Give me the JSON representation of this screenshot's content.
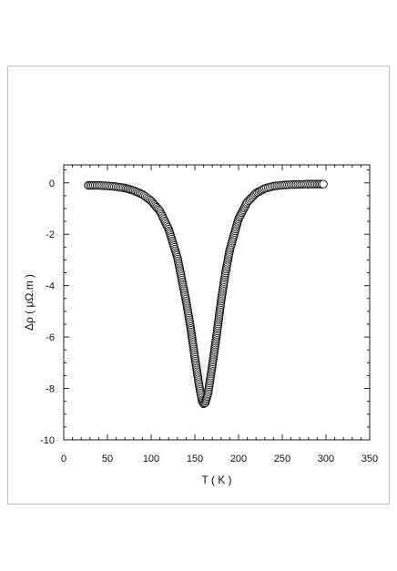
{
  "chart_data": {
    "type": "scatter",
    "title": "",
    "xlabel": "T ( K )",
    "ylabel": "Δρ ( μΩ.m )",
    "xlim": [
      0,
      350
    ],
    "ylim": [
      -10,
      0.7
    ],
    "xticks": [
      0,
      50,
      100,
      150,
      200,
      250,
      300,
      350
    ],
    "yticks": [
      0,
      -2,
      -4,
      -6,
      -8,
      -10
    ],
    "grid": false,
    "marker": "open-circle",
    "series": [
      {
        "values": {
          "x": [
            28,
            40,
            50,
            60,
            70,
            80,
            90,
            100,
            110,
            120,
            130,
            140,
            145,
            150,
            155,
            158,
            160,
            162,
            165,
            170,
            175,
            180,
            185,
            190,
            200,
            210,
            220,
            230,
            240,
            250,
            260,
            270,
            280,
            290,
            297
          ],
          "y": [
            -0.1,
            -0.1,
            -0.12,
            -0.15,
            -0.2,
            -0.3,
            -0.45,
            -0.7,
            -1.1,
            -1.8,
            -2.9,
            -4.6,
            -5.6,
            -6.8,
            -7.9,
            -8.45,
            -8.6,
            -8.55,
            -8.2,
            -7.1,
            -5.9,
            -4.6,
            -3.5,
            -2.6,
            -1.4,
            -0.75,
            -0.4,
            -0.22,
            -0.13,
            -0.09,
            -0.07,
            -0.06,
            -0.05,
            -0.05,
            -0.05
          ]
        }
      }
    ]
  }
}
